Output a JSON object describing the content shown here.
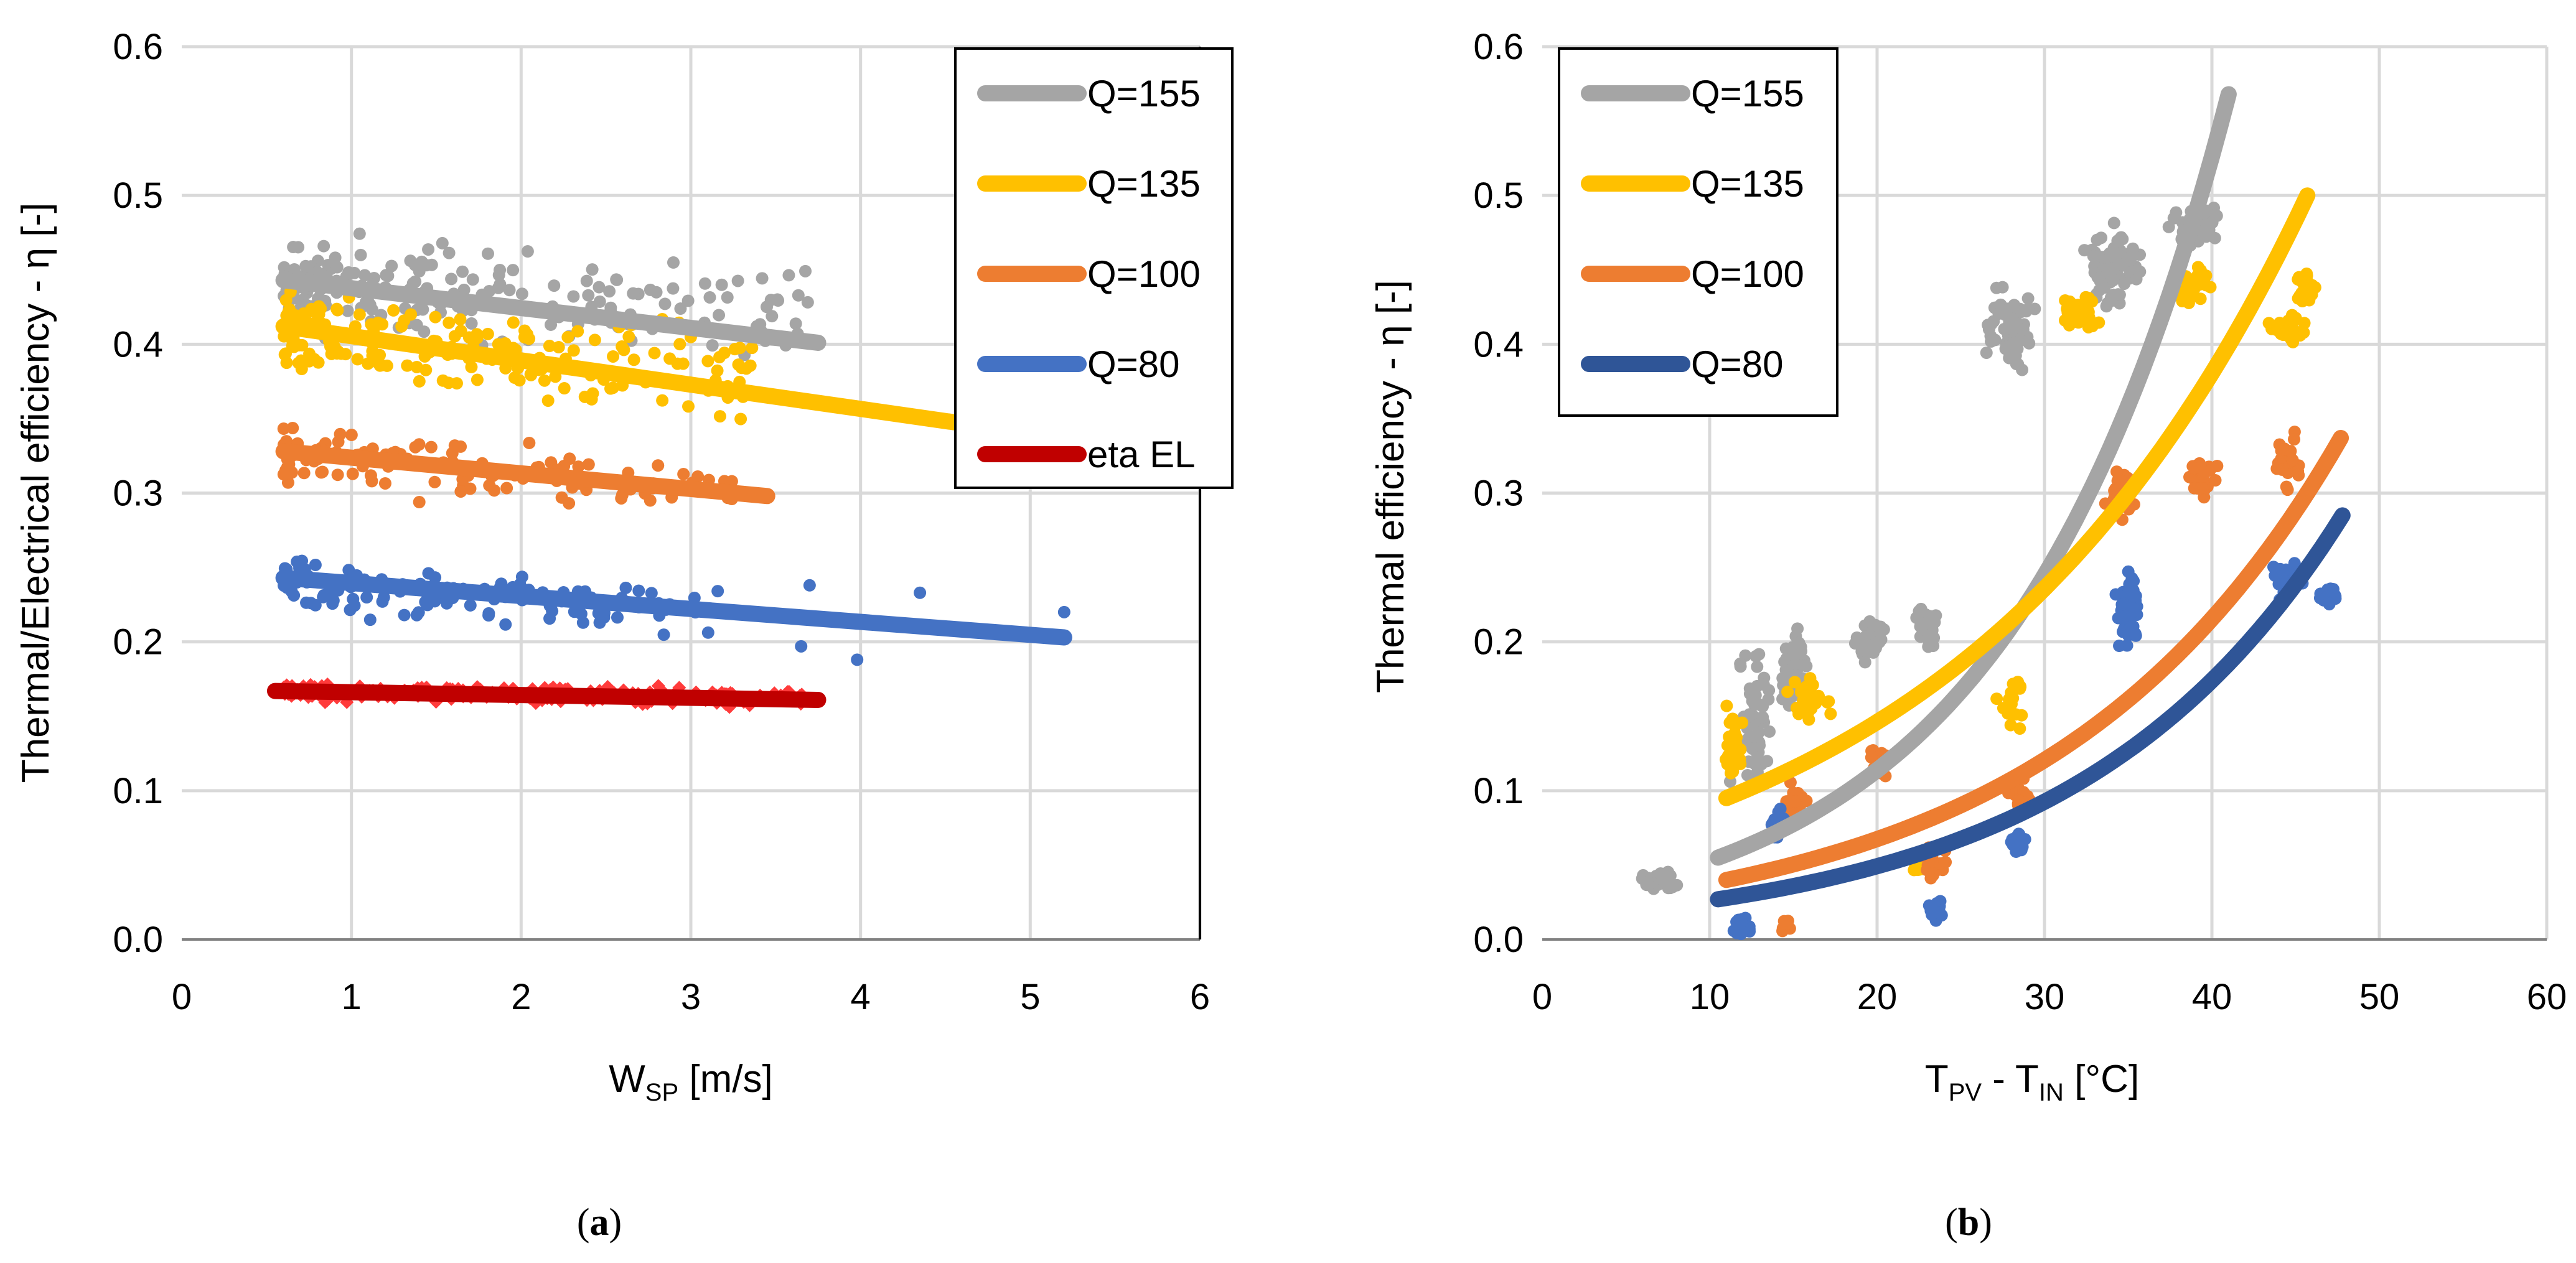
{
  "chart_data": [
    {
      "type": "scatter",
      "panel_label": "a",
      "xlabel": {
        "main": "W",
        "sub": "SP",
        "rest": " [m/s]"
      },
      "ylabel": "Thermal/Electrical efficiency - η [-]",
      "xlim": [
        0,
        6
      ],
      "ylim": [
        0,
        0.6
      ],
      "x_ticks": [
        "0",
        "1",
        "2",
        "3",
        "4",
        "5",
        "6"
      ],
      "y_ticks": [
        "0.0",
        "0.1",
        "0.2",
        "0.3",
        "0.4",
        "0.5",
        "0.6"
      ],
      "grid": true,
      "legend_position": "top-right",
      "series": [
        {
          "name": "Q=155",
          "color": "#A5A5A5",
          "marker": "circle",
          "scatter": {
            "x_range": [
              0.6,
              3.7
            ],
            "y_center": [
              0.44,
              0.42
            ],
            "spread": 0.045,
            "count": 200
          },
          "trend": {
            "kind": "linear",
            "x": [
              0.6,
              3.75
            ],
            "y": [
              0.443,
              0.401
            ]
          }
        },
        {
          "name": "Q=135",
          "color": "#FFC000",
          "marker": "circle",
          "scatter": {
            "x_range": [
              0.6,
              3.4
            ],
            "y_center": [
              0.41,
              0.38
            ],
            "spread": 0.04,
            "count": 200
          },
          "trend": {
            "kind": "linear",
            "x": [
              0.6,
              5.2
            ],
            "y": [
              0.412,
              0.337
            ]
          }
        },
        {
          "name": "Q=100",
          "color": "#ED7D31",
          "marker": "circle",
          "scatter": {
            "x_range": [
              0.6,
              3.3
            ],
            "y_center": [
              0.325,
              0.3
            ],
            "spread": 0.025,
            "count": 120
          },
          "trend": {
            "kind": "linear",
            "x": [
              0.6,
              3.45
            ],
            "y": [
              0.328,
              0.298
            ]
          }
        },
        {
          "name": "Q=80",
          "color": "#4472C4",
          "marker": "circle",
          "scatter": {
            "x_range": [
              0.6,
              3.2
            ],
            "y_center": [
              0.24,
              0.22
            ],
            "spread": 0.025,
            "count": 140
          },
          "extra_points": [
            [
              3.7,
              0.238
            ],
            [
              4.35,
              0.233
            ],
            [
              3.65,
              0.197
            ],
            [
              3.98,
              0.188
            ],
            [
              5.2,
              0.22
            ]
          ],
          "trend": {
            "kind": "linear",
            "x": [
              0.6,
              5.2
            ],
            "y": [
              0.243,
              0.203
            ]
          }
        },
        {
          "name": "eta EL",
          "color": "#FF3B3B",
          "trend_color": "#C00000",
          "marker": "diamond",
          "scatter": {
            "x_range": [
              0.6,
              3.7
            ],
            "y_center": [
              0.167,
              0.162
            ],
            "spread": 0.008,
            "count": 260
          },
          "trend": {
            "kind": "linear",
            "x": [
              0.55,
              3.75
            ],
            "y": [
              0.167,
              0.161
            ]
          }
        }
      ]
    },
    {
      "type": "scatter",
      "panel_label": "b",
      "xlabel": {
        "main": "T",
        "sub": "PV",
        "rest": " - T",
        "sub2": "IN",
        "rest2": "  [°C]"
      },
      "ylabel": "Thermal efficiency - η [-]",
      "xlim": [
        0,
        60
      ],
      "ylim": [
        0,
        0.6
      ],
      "x_ticks": [
        "0",
        "10",
        "20",
        "30",
        "40",
        "50",
        "60"
      ],
      "y_ticks": [
        "0.0",
        "0.1",
        "0.2",
        "0.3",
        "0.4",
        "0.5",
        "0.6"
      ],
      "grid": true,
      "legend_position": "top-left",
      "series": [
        {
          "name": "Q=155",
          "color": "#A5A5A5",
          "marker": "circle",
          "clusters": [
            [
              7,
              0.04,
              1.5,
              0.01,
              40
            ],
            [
              12.5,
              0.15,
              1.5,
              0.06,
              50
            ],
            [
              15,
              0.18,
              1.2,
              0.04,
              60
            ],
            [
              19.5,
              0.2,
              1.2,
              0.02,
              40
            ],
            [
              23,
              0.21,
              1.0,
              0.02,
              30
            ],
            [
              28,
              0.41,
              2.0,
              0.04,
              70
            ],
            [
              34,
              0.45,
              2.0,
              0.04,
              90
            ],
            [
              39,
              0.48,
              2.0,
              0.02,
              60
            ]
          ],
          "trend": {
            "kind": "exp",
            "x": [
              10.5,
              41
            ],
            "y": [
              0.055,
              0.568
            ]
          }
        },
        {
          "name": "Q=135",
          "color": "#FFC000",
          "marker": "circle",
          "clusters": [
            [
              11.5,
              0.13,
              0.8,
              0.03,
              30
            ],
            [
              16,
              0.16,
              1.5,
              0.02,
              30
            ],
            [
              22.5,
              0.05,
              0.8,
              0.01,
              20
            ],
            [
              28,
              0.16,
              1.0,
              0.02,
              20
            ],
            [
              32,
              0.42,
              1.5,
              0.02,
              40
            ],
            [
              39,
              0.44,
              1.5,
              0.02,
              40
            ],
            [
              44.5,
              0.41,
              1.5,
              0.02,
              30
            ],
            [
              45.5,
              0.44,
              0.8,
              0.02,
              20
            ]
          ],
          "trend": {
            "kind": "exp",
            "x": [
              11,
              45.7
            ],
            "y": [
              0.095,
              0.5
            ]
          }
        },
        {
          "name": "Q=100",
          "color": "#ED7D31",
          "marker": "circle",
          "clusters": [
            [
              14.5,
              0.01,
              0.4,
              0.01,
              10
            ],
            [
              15,
              0.09,
              1.0,
              0.02,
              20
            ],
            [
              20,
              0.12,
              1.0,
              0.02,
              20
            ],
            [
              23.5,
              0.05,
              1.0,
              0.015,
              20
            ],
            [
              28.5,
              0.1,
              1.0,
              0.02,
              20
            ],
            [
              34.5,
              0.3,
              1.2,
              0.02,
              40
            ],
            [
              39.5,
              0.31,
              1.0,
              0.02,
              30
            ],
            [
              44.5,
              0.32,
              1.2,
              0.03,
              30
            ]
          ],
          "trend": {
            "kind": "exp",
            "x": [
              11,
              47.7
            ],
            "y": [
              0.04,
              0.337
            ]
          }
        },
        {
          "name": "Q=80",
          "color": "#4472C4",
          "trend_color": "#2F5597",
          "marker": "circle",
          "clusters": [
            [
              12,
              0.01,
              0.8,
              0.008,
              15
            ],
            [
              14,
              0.08,
              0.6,
              0.02,
              20
            ],
            [
              23.5,
              0.02,
              0.6,
              0.01,
              25
            ],
            [
              28.5,
              0.065,
              0.6,
              0.01,
              25
            ],
            [
              35,
              0.22,
              1.0,
              0.03,
              45
            ],
            [
              44.5,
              0.24,
              1.2,
              0.02,
              40
            ],
            [
              47,
              0.23,
              0.8,
              0.01,
              20
            ]
          ],
          "trend": {
            "kind": "exp",
            "x": [
              10.5,
              47.8
            ],
            "y": [
              0.027,
              0.285
            ]
          }
        }
      ]
    }
  ]
}
